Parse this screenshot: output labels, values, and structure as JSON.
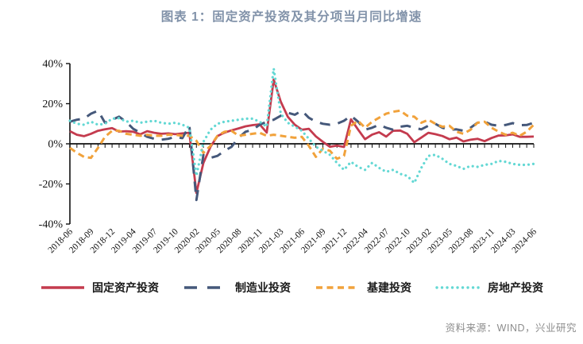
{
  "title": "图表 1：固定资产投资及其分项当月同比增速",
  "source": "资料来源：WIND，兴业研究",
  "colors": {
    "title": "#8192A9",
    "axis": "#111111",
    "source_text": "#8C8C8C",
    "fixed_asset": "#C43B4E",
    "manufacturing": "#45587A",
    "infrastructure": "#F1A23B",
    "real_estate": "#63D8D4"
  },
  "chart_data": {
    "type": "line",
    "title": "图表 1：固定资产投资及其分项当月同比增速",
    "xlabel": "",
    "ylabel": "",
    "ylim": [
      -40,
      40
    ],
    "grid": false,
    "legend_position": "bottom",
    "yticks": [
      {
        "label": "40%",
        "value": 40
      },
      {
        "label": "20%",
        "value": 20
      },
      {
        "label": "0%",
        "value": 0
      },
      {
        "label": "-20%",
        "value": -20
      },
      {
        "label": "-40%",
        "value": -40
      }
    ],
    "x_label_every": 3,
    "x_labels": [
      "2018-06",
      "2018-09",
      "2018-12",
      "2019-04",
      "2019-07",
      "2019-10",
      "2020-02",
      "2020-05",
      "2020-08",
      "2020-11",
      "2021-03",
      "2021-06",
      "2021-09",
      "2021-12",
      "2022-04",
      "2022-07",
      "2022-10",
      "2023-02",
      "2023-05",
      "2023-08",
      "2023-11",
      "2024-03",
      "2024-06"
    ],
    "x": [
      "2018-06",
      "2018-07",
      "2018-08",
      "2018-09",
      "2018-10",
      "2018-11",
      "2018-12",
      "2019-02",
      "2019-03",
      "2019-04",
      "2019-05",
      "2019-06",
      "2019-07",
      "2019-08",
      "2019-09",
      "2019-10",
      "2019-11",
      "2019-12",
      "2020-02",
      "2020-03",
      "2020-04",
      "2020-05",
      "2020-06",
      "2020-07",
      "2020-08",
      "2020-09",
      "2020-10",
      "2020-11",
      "2020-12",
      "2021-02",
      "2021-03",
      "2021-04",
      "2021-05",
      "2021-06",
      "2021-07",
      "2021-08",
      "2021-09",
      "2021-10",
      "2021-11",
      "2021-12",
      "2022-02",
      "2022-03",
      "2022-04",
      "2022-05",
      "2022-06",
      "2022-07",
      "2022-08",
      "2022-09",
      "2022-10",
      "2022-11",
      "2022-12",
      "2023-02",
      "2023-03",
      "2023-04",
      "2023-05",
      "2023-06",
      "2023-07",
      "2023-08",
      "2023-09",
      "2023-10",
      "2023-11",
      "2023-12",
      "2024-02",
      "2024-03",
      "2024-04",
      "2024-05",
      "2024-06"
    ],
    "series": [
      {
        "key": "fixed-asset-investment",
        "name": "固定资产投资",
        "color": "#C43B4E",
        "dash": "solid",
        "values": [
          6.3,
          4.5,
          3.8,
          5.0,
          6.5,
          7.2,
          7.8,
          6.1,
          6.3,
          6.0,
          4.7,
          6.3,
          5.5,
          5.0,
          5.2,
          4.8,
          5.2,
          5.5,
          -24.5,
          -9.5,
          -1.5,
          3.9,
          5.6,
          6.7,
          7.7,
          8.7,
          9.3,
          9.7,
          5.6,
          32.0,
          21.0,
          13.5,
          9.5,
          7.0,
          7.5,
          3.7,
          1.0,
          -1.5,
          -0.9,
          -1.6,
          12.2,
          7.1,
          2.3,
          4.6,
          5.8,
          3.6,
          6.5,
          6.6,
          5.0,
          0.8,
          3.1,
          5.5,
          4.8,
          3.9,
          2.3,
          3.1,
          1.2,
          2.0,
          2.5,
          1.3,
          2.9,
          4.1,
          4.2,
          4.7,
          3.5,
          3.5,
          3.6
        ]
      },
      {
        "key": "manufacturing-investment",
        "name": "制造业投资",
        "color": "#45587A",
        "dash": "dashed",
        "values": [
          11.0,
          12.0,
          12.5,
          15.0,
          16.5,
          10.5,
          12.0,
          13.5,
          11.0,
          7.5,
          5.5,
          3.5,
          2.5,
          2.0,
          2.5,
          3.5,
          2.8,
          9.0,
          -28.0,
          -5.5,
          -7.0,
          -6.0,
          -3.5,
          -1.5,
          3.0,
          6.0,
          7.0,
          9.5,
          11.0,
          12.0,
          14.0,
          15.5,
          14.5,
          16.5,
          13.0,
          11.0,
          10.0,
          9.5,
          10.0,
          11.5,
          14.0,
          11.0,
          7.0,
          8.0,
          9.5,
          8.0,
          7.0,
          8.5,
          9.0,
          8.0,
          7.2,
          9.0,
          10.0,
          8.0,
          7.0,
          7.2,
          6.5,
          8.0,
          10.5,
          11.0,
          9.5,
          9.0,
          9.4,
          10.3,
          9.3,
          9.4,
          10.5
        ]
      },
      {
        "key": "infrastructure-investment",
        "name": "基建投资",
        "color": "#F1A23B",
        "dash": "dashed-short",
        "values": [
          -2.0,
          -4.5,
          -6.5,
          -7.0,
          -2.0,
          3.5,
          6.5,
          6.5,
          5.0,
          4.5,
          4.0,
          4.5,
          4.0,
          4.0,
          4.5,
          4.5,
          4.0,
          4.0,
          1.5,
          -4.5,
          -1.0,
          4.0,
          6.0,
          6.5,
          4.0,
          4.5,
          5.0,
          5.5,
          4.0,
          4.5,
          4.0,
          3.5,
          3.0,
          3.5,
          -1.0,
          -6.5,
          -2.5,
          -3.5,
          -7.5,
          -6.0,
          9.0,
          11.5,
          8.0,
          11.0,
          13.0,
          15.0,
          16.0,
          16.5,
          14.0,
          13.5,
          10.5,
          12.0,
          10.0,
          8.5,
          9.0,
          6.0,
          5.0,
          7.0,
          10.5,
          11.0,
          8.0,
          6.0,
          4.5,
          5.5,
          4.0,
          6.0,
          9.5
        ]
      },
      {
        "key": "real-estate-investment",
        "name": "房地产投资",
        "color": "#63D8D4",
        "dash": "dotted",
        "values": [
          11.5,
          10.0,
          9.5,
          11.0,
          9.5,
          10.0,
          12.5,
          12.8,
          11.0,
          11.5,
          10.5,
          11.0,
          11.5,
          10.5,
          10.0,
          10.5,
          9.5,
          8.0,
          -16.0,
          1.0,
          7.0,
          10.0,
          11.0,
          11.5,
          12.0,
          12.5,
          12.5,
          11.0,
          8.5,
          37.5,
          15.0,
          10.5,
          8.5,
          6.5,
          2.5,
          -1.5,
          -3.5,
          -5.5,
          -9.5,
          -13.0,
          -9.0,
          -11.5,
          -13.0,
          -9.5,
          -12.0,
          -14.0,
          -13.0,
          -15.0,
          -16.0,
          -19.5,
          -12.0,
          -6.0,
          -5.5,
          -7.5,
          -10.0,
          -11.0,
          -12.5,
          -11.0,
          -11.5,
          -10.5,
          -10.0,
          -8.5,
          -9.0,
          -10.0,
          -10.5,
          -10.5,
          -10.0
        ]
      }
    ]
  }
}
